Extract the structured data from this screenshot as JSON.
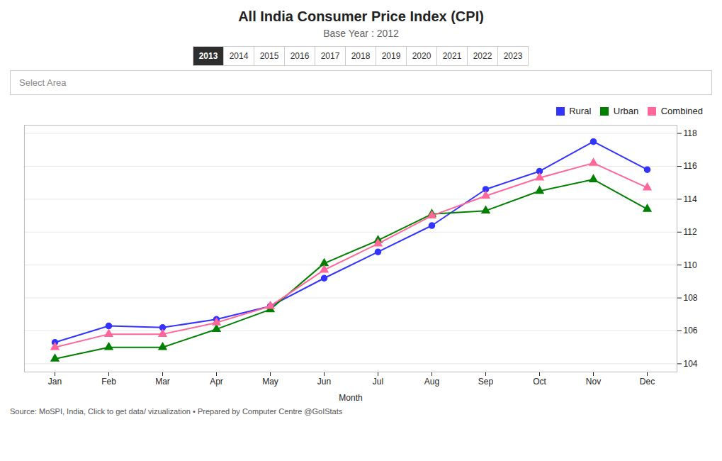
{
  "chart_data": {
    "type": "line",
    "title": "All India Consumer Price Index (CPI)",
    "subtitle": "Base Year : 2012",
    "xlabel": "Month",
    "categories": [
      "Jan",
      "Feb",
      "Mar",
      "Apr",
      "May",
      "Jun",
      "Jul",
      "Aug",
      "Sep",
      "Oct",
      "Nov",
      "Dec"
    ],
    "series": [
      {
        "name": "Rural",
        "color": "#3333ff",
        "marker": "circle",
        "values": [
          105.3,
          106.3,
          106.2,
          106.7,
          107.5,
          109.2,
          110.8,
          112.4,
          114.6,
          115.7,
          117.5,
          115.8
        ]
      },
      {
        "name": "Urban",
        "color": "#008000",
        "marker": "triangle",
        "values": [
          104.3,
          105.0,
          105.0,
          106.1,
          107.3,
          110.1,
          111.5,
          113.1,
          113.3,
          114.5,
          115.2,
          113.4
        ]
      },
      {
        "name": "Combined",
        "color": "#ff6699",
        "marker": "triangle",
        "values": [
          105.0,
          105.8,
          105.8,
          106.5,
          107.5,
          109.7,
          111.3,
          113.0,
          114.2,
          115.3,
          116.2,
          114.7
        ]
      }
    ],
    "ylim": [
      103.5,
      118.5
    ],
    "yticks": [
      104,
      106,
      108,
      110,
      112,
      114,
      116,
      118
    ],
    "grid": true,
    "legend": "upper right",
    "tabs": [
      "2013",
      "2014",
      "2015",
      "2016",
      "2017",
      "2018",
      "2019",
      "2020",
      "2021",
      "2022",
      "2023"
    ],
    "selected_tab": "2013",
    "annotations": [
      "Select Area"
    ],
    "source": "Source: MoSPI, India, Click to get data/ vizualization • Prepared by Computer Centre @GoIStats"
  }
}
